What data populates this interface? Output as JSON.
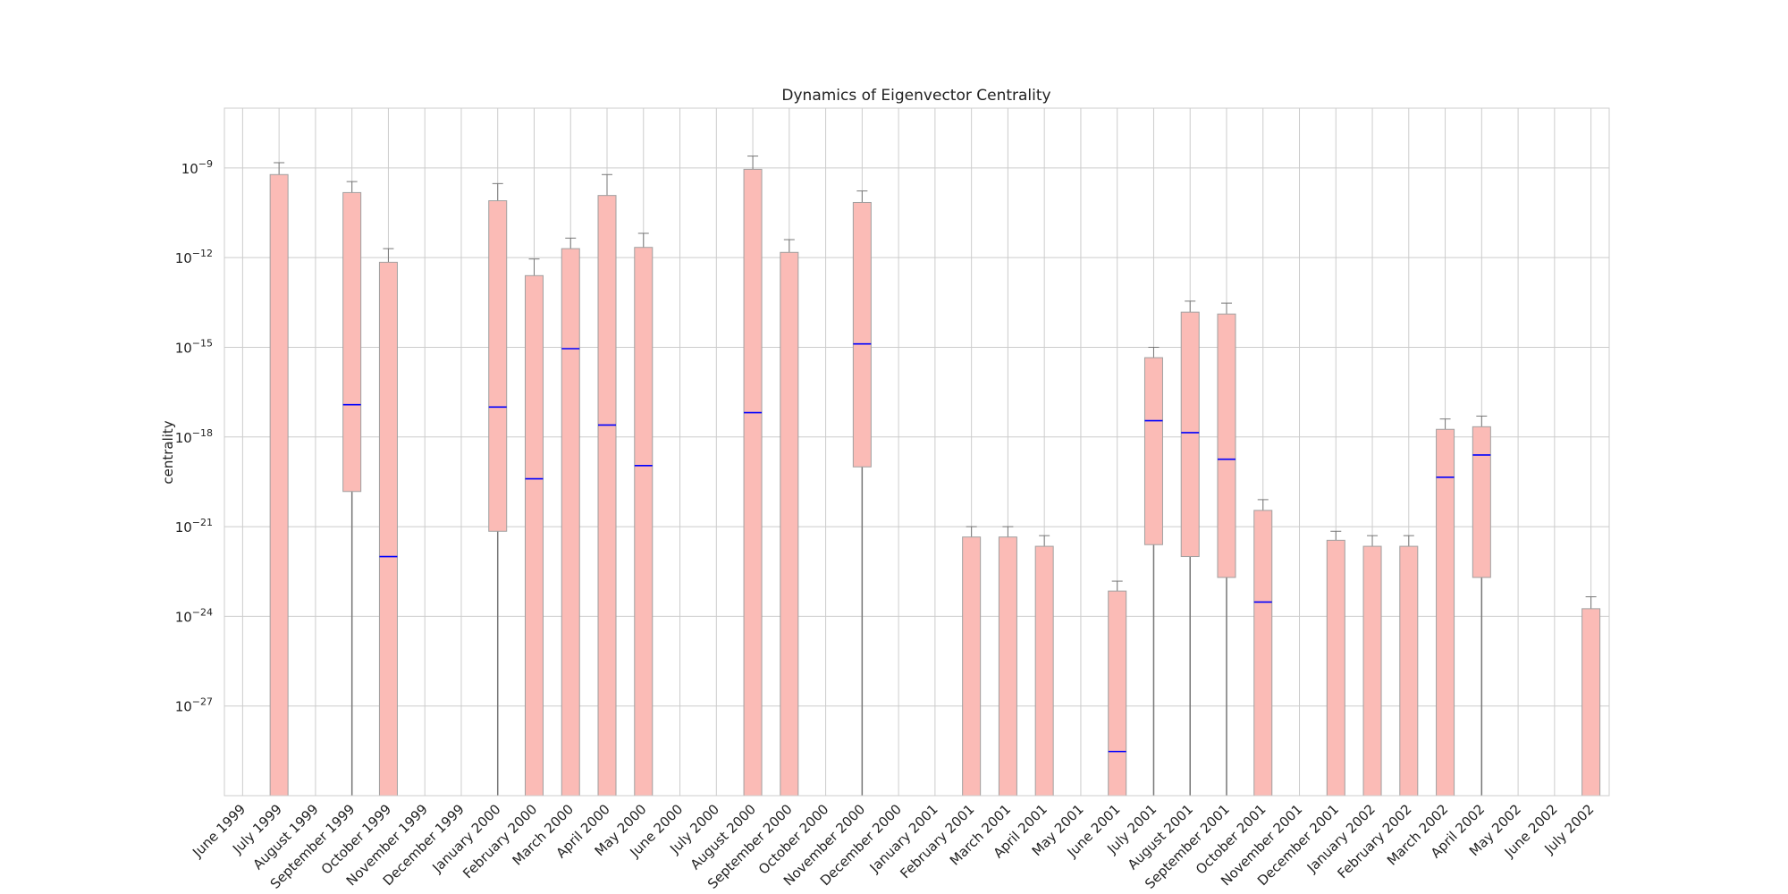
{
  "chart_data": {
    "type": "box",
    "title": "Dynamics of Eigenvector Centrality",
    "xlabel": "",
    "ylabel": "centrality",
    "yscale": "log",
    "ylim": [
      1e-30,
      1e-07
    ],
    "yticks": [
      {
        "value": 1e-09,
        "base": "10",
        "exp": "−9"
      },
      {
        "value": 1e-12,
        "base": "10",
        "exp": "−12"
      },
      {
        "value": 1e-15,
        "base": "10",
        "exp": "−15"
      },
      {
        "value": 1e-18,
        "base": "10",
        "exp": "−18"
      },
      {
        "value": 1e-21,
        "base": "10",
        "exp": "−21"
      },
      {
        "value": 1e-24,
        "base": "10",
        "exp": "−24"
      },
      {
        "value": 1e-27,
        "base": "10",
        "exp": "−27"
      }
    ],
    "grid": true,
    "colors": {
      "box_fill": "#fbbbb6",
      "box_edge": "#a0a0a0",
      "median": "#0000ff",
      "whisker": "#777777",
      "grid": "#cccccc"
    },
    "categories": [
      "June 1999",
      "July 1999",
      "August 1999",
      "September 1999",
      "October 1999",
      "November 1999",
      "December 1999",
      "January 2000",
      "February 2000",
      "March 2000",
      "April 2000",
      "May 2000",
      "June 2000",
      "July 2000",
      "August 2000",
      "September 2000",
      "October 2000",
      "November 2000",
      "December 2000",
      "January 2001",
      "February 2001",
      "March 2001",
      "April 2001",
      "May 2001",
      "June 2001",
      "July 2001",
      "August 2001",
      "September 2001",
      "October 2001",
      "November 2001",
      "December 2001",
      "January 2002",
      "February 2002",
      "March 2002",
      "April 2002",
      "May 2002",
      "June 2002",
      "July 2002"
    ],
    "boxes": [
      null,
      {
        "whislo": null,
        "q1": null,
        "med": null,
        "q3": 6e-10,
        "whishi": 1.5e-09
      },
      null,
      {
        "whislo": null,
        "q1": 1.5e-20,
        "med": 1.2e-17,
        "q3": 1.5e-10,
        "whishi": 3.5e-10
      },
      {
        "whislo": null,
        "q1": null,
        "med": 1e-22,
        "q3": 7e-13,
        "whishi": 2e-12
      },
      null,
      null,
      {
        "whislo": null,
        "q1": 7e-22,
        "med": 1e-17,
        "q3": 8e-11,
        "whishi": 3e-10
      },
      {
        "whislo": null,
        "q1": null,
        "med": 4e-20,
        "q3": 2.5e-13,
        "whishi": 9e-13
      },
      {
        "whislo": null,
        "q1": null,
        "med": 9e-16,
        "q3": 2e-12,
        "whishi": 4.5e-12
      },
      {
        "whislo": null,
        "q1": null,
        "med": 2.5e-18,
        "q3": 1.2e-10,
        "whishi": 6e-10
      },
      {
        "whislo": null,
        "q1": null,
        "med": 1.1e-19,
        "q3": 2.2e-12,
        "whishi": 6.5e-12
      },
      null,
      null,
      {
        "whislo": null,
        "q1": null,
        "med": 6.5e-18,
        "q3": 9e-10,
        "whishi": 2.5e-09
      },
      {
        "whislo": null,
        "q1": null,
        "med": null,
        "q3": 1.5e-12,
        "whishi": 4e-12
      },
      null,
      {
        "whislo": null,
        "q1": 1e-19,
        "med": 1.3e-15,
        "q3": 7e-11,
        "whishi": 1.7e-10
      },
      null,
      null,
      {
        "whislo": null,
        "q1": null,
        "med": null,
        "q3": 4.5e-22,
        "whishi": 1e-21
      },
      {
        "whislo": null,
        "q1": null,
        "med": null,
        "q3": 4.5e-22,
        "whishi": 1e-21
      },
      {
        "whislo": null,
        "q1": null,
        "med": null,
        "q3": 2.2e-22,
        "whishi": 5e-22
      },
      null,
      {
        "whislo": null,
        "q1": null,
        "med": 3e-29,
        "q3": 7e-24,
        "whishi": 1.5e-23
      },
      {
        "whislo": null,
        "q1": 2.5e-22,
        "med": 3.5e-18,
        "q3": 4.5e-16,
        "whishi": 1e-15
      },
      {
        "whislo": null,
        "q1": 1e-22,
        "med": 1.4e-18,
        "q3": 1.5e-14,
        "whishi": 3.5e-14
      },
      {
        "whislo": null,
        "q1": 2e-23,
        "med": 1.8e-19,
        "q3": 1.3e-14,
        "whishi": 3e-14
      },
      {
        "whislo": null,
        "q1": null,
        "med": 3e-24,
        "q3": 3.5e-21,
        "whishi": 8e-21
      },
      null,
      {
        "whislo": null,
        "q1": null,
        "med": null,
        "q3": 3.5e-22,
        "whishi": 7e-22
      },
      {
        "whislo": null,
        "q1": null,
        "med": null,
        "q3": 2.2e-22,
        "whishi": 5e-22
      },
      {
        "whislo": null,
        "q1": null,
        "med": null,
        "q3": 2.2e-22,
        "whishi": 5e-22
      },
      {
        "whislo": null,
        "q1": null,
        "med": 4.5e-20,
        "q3": 1.8e-18,
        "whishi": 4e-18
      },
      {
        "whislo": null,
        "q1": 2e-23,
        "med": 2.5e-19,
        "q3": 2.2e-18,
        "whishi": 5e-18
      },
      null,
      null,
      {
        "whislo": null,
        "q1": null,
        "med": null,
        "q3": 1.8e-24,
        "whishi": 4.5e-24
      }
    ]
  }
}
